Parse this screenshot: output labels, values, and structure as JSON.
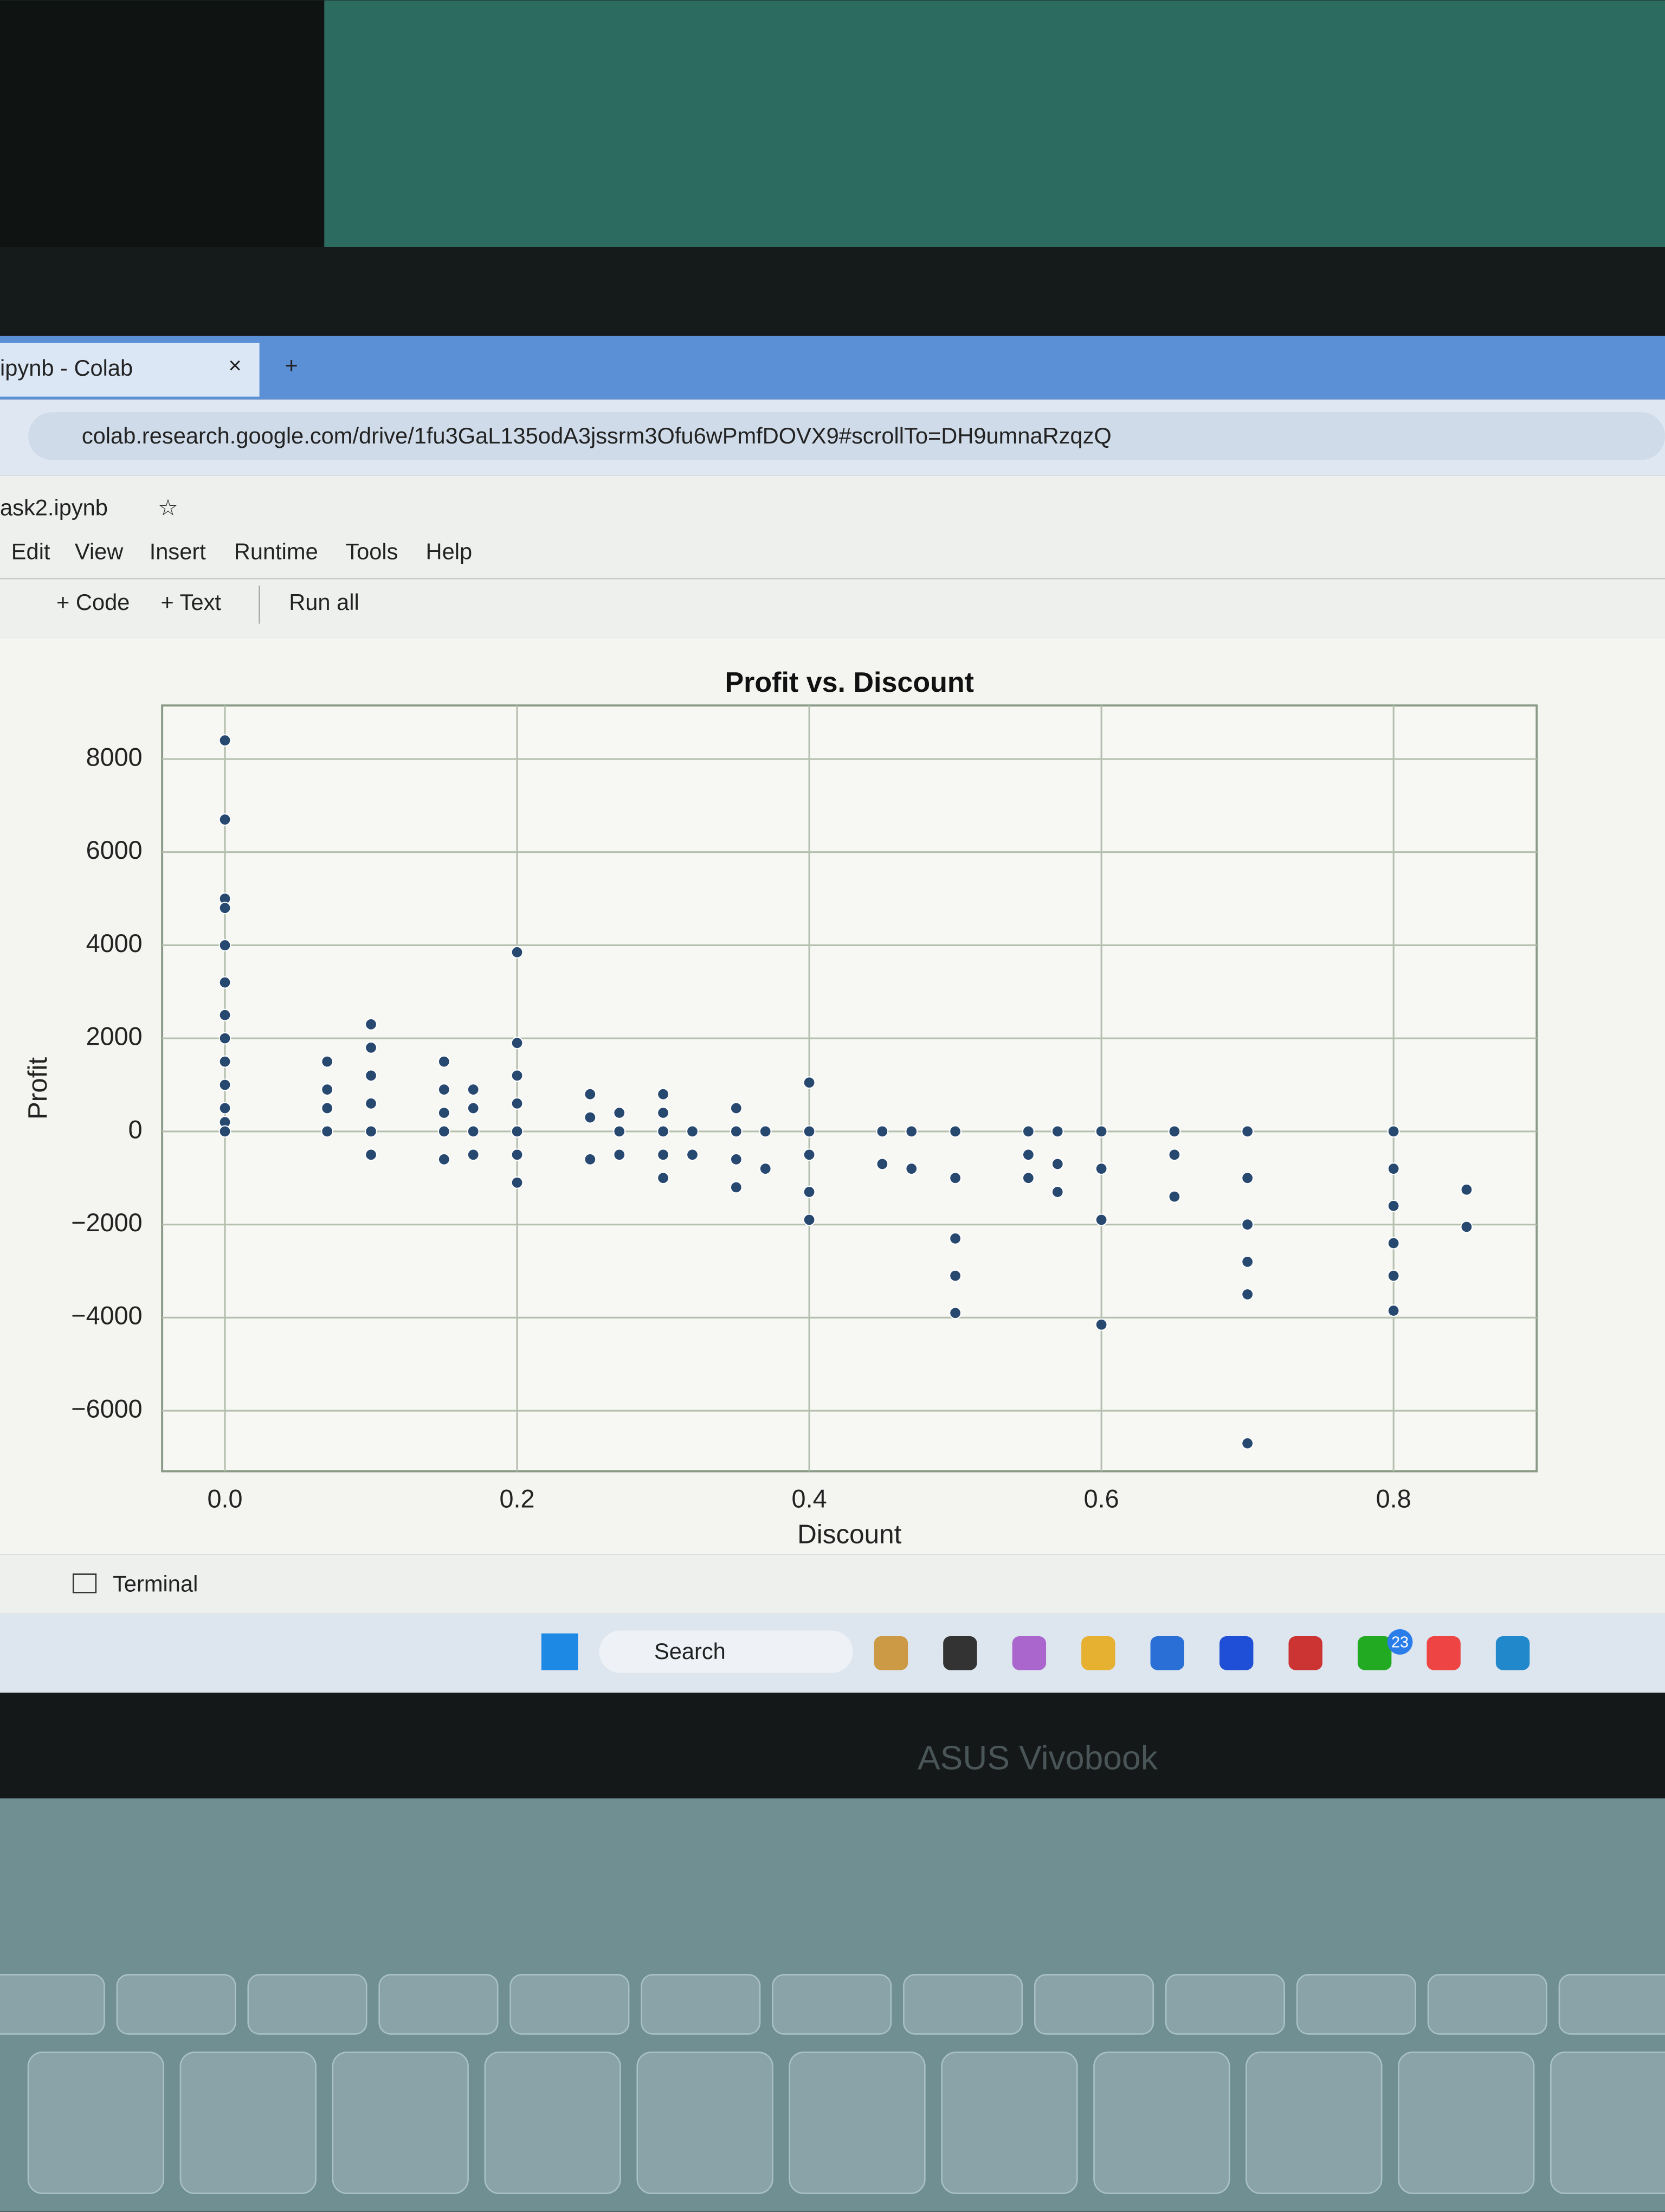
{
  "browser": {
    "tab": "ipynb - Colab",
    "url": "colab.research.google.com/drive/1fu3GaL135odA3jssrm3Ofu6wPmfDOVX9#scrollTo=DH9umnaRzqzQ",
    "notebook": "ask2.ipynb",
    "menu": [
      "Edit",
      "View",
      "Insert",
      "Runtime",
      "Tools",
      "Help"
    ],
    "toolbar": [
      "+ Code",
      "+ Text",
      "Run all"
    ],
    "footer": "Terminal"
  },
  "taskbar": {
    "search": "Search",
    "badge": "23"
  },
  "laptop": {
    "brand": "ASUS Vivobook"
  },
  "chart_data": {
    "type": "scatter",
    "title": "Profit vs. Discount",
    "x_label": "Discount",
    "y_label": "Profit",
    "color": "#27486f",
    "grid": true,
    "x": [
      0,
      0,
      0,
      0,
      0,
      0,
      0,
      0,
      0,
      0,
      0,
      0,
      0,
      0.07,
      0.07,
      0.07,
      0.07,
      0.1,
      0.1,
      0.1,
      0.1,
      0.1,
      0.1,
      0.15,
      0.15,
      0.15,
      0.15,
      0.15,
      0.17,
      0.17,
      0.17,
      0.17,
      0.2,
      0.2,
      0.2,
      0.2,
      0.2,
      0.2,
      0.2,
      0.25,
      0.25,
      0.25,
      0.27,
      0.27,
      0.27,
      0.3,
      0.3,
      0.3,
      0.3,
      0.3,
      0.32,
      0.32,
      0.35,
      0.35,
      0.35,
      0.35,
      0.37,
      0.37,
      0.4,
      0.4,
      0.4,
      0.4,
      0.4,
      0.45,
      0.45,
      0.47,
      0.47,
      0.5,
      0.5,
      0.5,
      0.5,
      0.5,
      0.55,
      0.55,
      0.55,
      0.57,
      0.57,
      0.57,
      0.6,
      0.6,
      0.6,
      0.6,
      0.65,
      0.65,
      0.65,
      0.7,
      0.7,
      0.7,
      0.7,
      0.7,
      0.7,
      0.8,
      0.8,
      0.8,
      0.8,
      0.8,
      0.8,
      0.85,
      0.85
    ],
    "y": [
      8400,
      6700,
      5000,
      4800,
      4000,
      3200,
      2500,
      2000,
      1500,
      1000,
      500,
      200,
      0,
      1500,
      900,
      500,
      0,
      2300,
      1800,
      1200,
      600,
      0,
      -500,
      1500,
      900,
      400,
      0,
      -600,
      900,
      500,
      0,
      -500,
      3850,
      1900,
      1200,
      600,
      0,
      -500,
      -1100,
      800,
      300,
      -600,
      400,
      0,
      -500,
      800,
      400,
      0,
      -500,
      -1000,
      0,
      -500,
      500,
      0,
      -600,
      -1200,
      0,
      -800,
      1050,
      0,
      -500,
      -1300,
      -1900,
      0,
      -700,
      0,
      -800,
      0,
      -1000,
      -2300,
      -3100,
      -3900,
      0,
      -500,
      -1000,
      0,
      -700,
      -1300,
      0,
      -800,
      -1900,
      -4150,
      0,
      -500,
      -1400,
      0,
      -1000,
      -2000,
      -2800,
      -3500,
      -6700,
      0,
      -800,
      -1600,
      -2400,
      -3100,
      -3850,
      -1250,
      -2050
    ],
    "xlim": [
      -0.043,
      0.898
    ],
    "ylim": [
      -7300,
      9150
    ],
    "xticks": [
      {
        "value": 0,
        "label": "0.0"
      },
      0.2,
      0.4,
      0.6,
      0.8
    ],
    "yticks": [
      {
        "value": -6000,
        "label": "−6000"
      },
      {
        "value": -4000,
        "label": "−4000"
      },
      {
        "value": -2000,
        "label": "−2000"
      },
      0,
      2000,
      4000,
      6000,
      8000
    ]
  }
}
